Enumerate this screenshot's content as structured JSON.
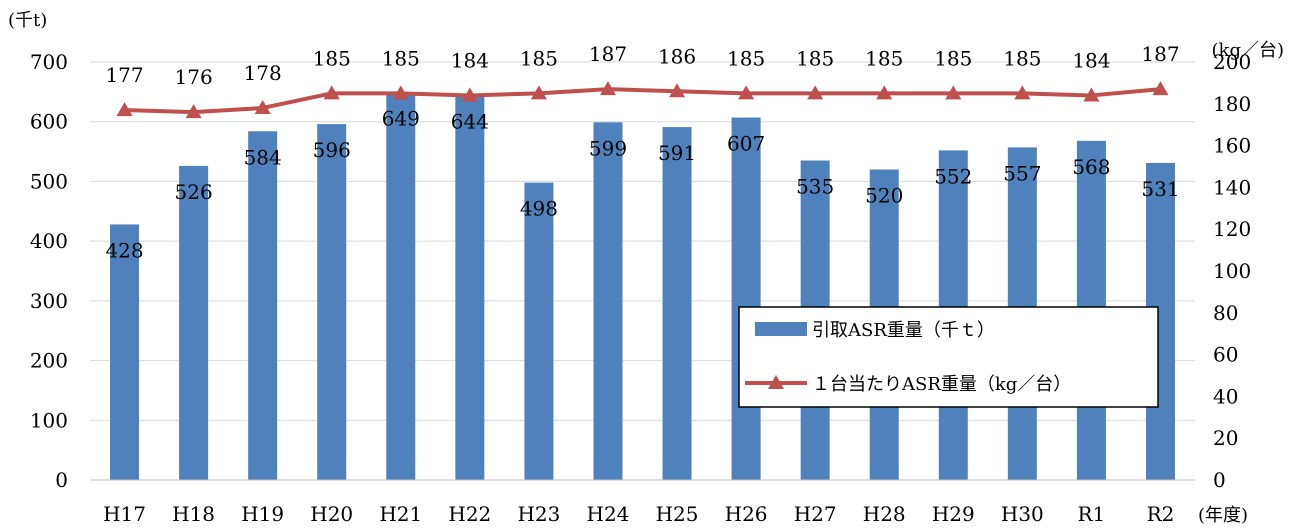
{
  "chart_data": {
    "type": "bar+line",
    "categories": [
      "H17",
      "H18",
      "H19",
      "H20",
      "H21",
      "H22",
      "H23",
      "H24",
      "H25",
      "H26",
      "H27",
      "H28",
      "H29",
      "H30",
      "R1",
      "R2"
    ],
    "series": [
      {
        "name": "引取ASR重量（千ｔ）",
        "type": "bar",
        "axis": "left",
        "color": "#4F81BD",
        "values": [
          428,
          526,
          584,
          596,
          649,
          644,
          498,
          599,
          591,
          607,
          535,
          520,
          552,
          557,
          568,
          531
        ]
      },
      {
        "name": "１台当たりASR重量（kg／台）",
        "type": "line",
        "axis": "right",
        "color": "#C0504D",
        "marker": "triangle",
        "values": [
          177,
          176,
          178,
          185,
          185,
          184,
          185,
          187,
          186,
          185,
          185,
          185,
          185,
          185,
          184,
          187
        ]
      }
    ],
    "y_left": {
      "unit": "(千t)",
      "ylim": [
        0,
        700
      ],
      "ticks": [
        "0",
        "100",
        "200",
        "300",
        "400",
        "500",
        "600",
        "700"
      ]
    },
    "y_right": {
      "unit": "(kg／台)",
      "ylim": [
        0,
        200
      ],
      "ticks": [
        "0",
        "20",
        "40",
        "60",
        "80",
        "100",
        "120",
        "140",
        "160",
        "180",
        "200"
      ]
    },
    "x_unit": "(年度)",
    "grid": true,
    "legend_position": "bottom-right"
  }
}
